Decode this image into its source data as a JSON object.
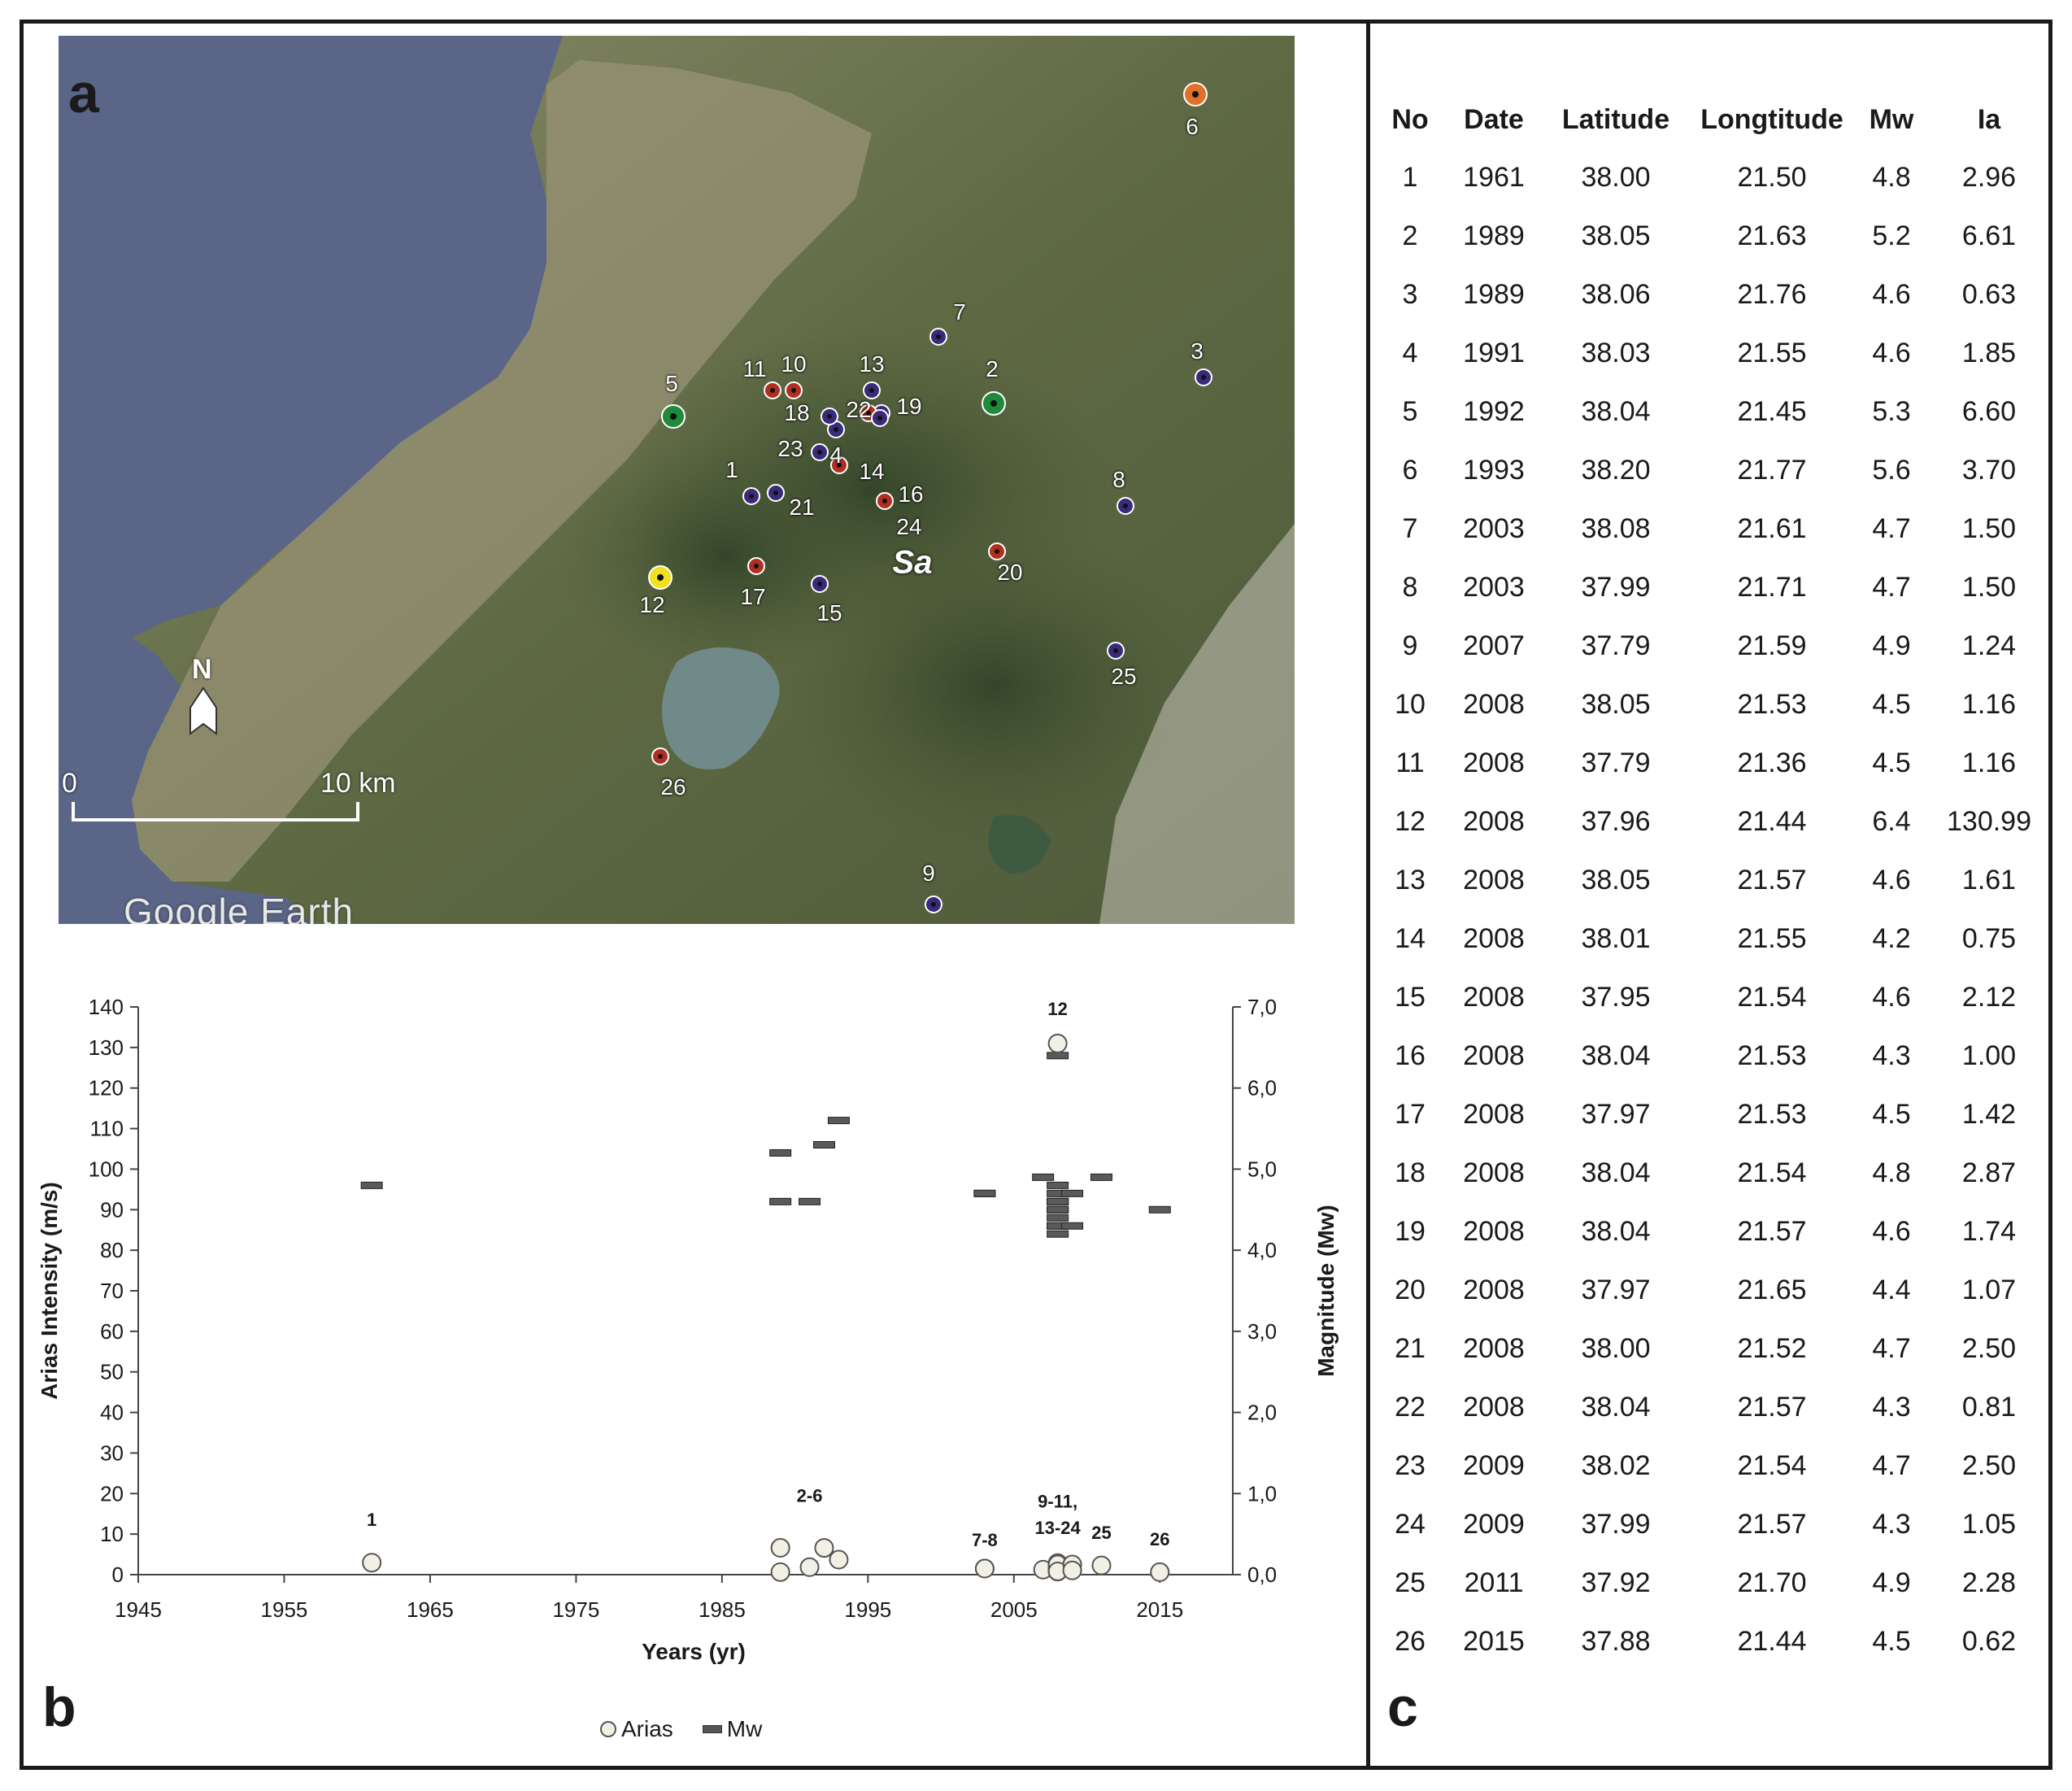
{
  "panel_labels": {
    "a": "a",
    "b": "b",
    "c": "c"
  },
  "map": {
    "study_area_label": "Sa",
    "north_label": "N",
    "scale_start": "0",
    "scale_end": "10 km",
    "watermark": "Google Earth",
    "marker_colors": {
      "purple": "#3a2a7a",
      "red": "#b03020",
      "green": "#1e8a3a",
      "orange": "#e0702a",
      "yellow": "#f0e020"
    },
    "markers": [
      {
        "no": "1",
        "color": "purple"
      },
      {
        "no": "2",
        "color": "green"
      },
      {
        "no": "3",
        "color": "purple"
      },
      {
        "no": "4",
        "color": "purple"
      },
      {
        "no": "5",
        "color": "green"
      },
      {
        "no": "6",
        "color": "orange"
      },
      {
        "no": "7",
        "color": "purple"
      },
      {
        "no": "8",
        "color": "purple"
      },
      {
        "no": "9",
        "color": "purple"
      },
      {
        "no": "10",
        "color": "red"
      },
      {
        "no": "11",
        "color": "red"
      },
      {
        "no": "12",
        "color": "yellow"
      },
      {
        "no": "13",
        "color": "purple"
      },
      {
        "no": "14",
        "color": "red"
      },
      {
        "no": "15",
        "color": "purple"
      },
      {
        "no": "16",
        "color": "red"
      },
      {
        "no": "17",
        "color": "red"
      },
      {
        "no": "18",
        "color": "purple"
      },
      {
        "no": "19",
        "color": "purple"
      },
      {
        "no": "20",
        "color": "red"
      },
      {
        "no": "21",
        "color": "purple"
      },
      {
        "no": "22",
        "color": "red"
      },
      {
        "no": "23",
        "color": "purple"
      },
      {
        "no": "24",
        "color": "purple"
      },
      {
        "no": "25",
        "color": "purple"
      },
      {
        "no": "26",
        "color": "red"
      }
    ]
  },
  "chart_data": {
    "type": "scatter",
    "x_label": "Years (yr)",
    "y_left_label": "Arias Intensity (m/s)",
    "y_right_label": "Magnitude (Mw)",
    "x_range": [
      1945,
      2020
    ],
    "x_ticks": [
      "1945",
      "1955",
      "1965",
      "1975",
      "1985",
      "1995",
      "2005",
      "2015"
    ],
    "y_left_range": [
      0,
      140
    ],
    "y_left_ticks": [
      "0",
      "10",
      "20",
      "30",
      "40",
      "50",
      "60",
      "70",
      "80",
      "90",
      "100",
      "110",
      "120",
      "130",
      "140"
    ],
    "y_right_range": [
      0,
      7
    ],
    "y_right_ticks": [
      "0,0",
      "1,0",
      "2,0",
      "3,0",
      "4,0",
      "5,0",
      "6,0",
      "7,0"
    ],
    "grid": false,
    "legend_position": "bottom",
    "series": [
      {
        "name": "Arias",
        "marker": "circle",
        "axis": "left",
        "x": [
          1961,
          1989,
          1989,
          1991,
          1992,
          1993,
          2003,
          2003,
          2007,
          2008,
          2008,
          2008,
          2008,
          2008,
          2008,
          2008,
          2008,
          2008,
          2008,
          2008,
          2008,
          2008,
          2009,
          2009,
          2011,
          2015
        ],
        "y": [
          2.96,
          6.61,
          0.63,
          1.85,
          6.6,
          3.7,
          1.5,
          1.5,
          1.24,
          1.16,
          1.16,
          130.99,
          1.61,
          0.75,
          2.12,
          1.0,
          1.42,
          2.87,
          1.74,
          1.07,
          2.5,
          0.81,
          2.5,
          1.05,
          2.28,
          0.62
        ]
      },
      {
        "name": "Mw",
        "marker": "dash",
        "axis": "right",
        "x": [
          1961,
          1989,
          1989,
          1991,
          1992,
          1993,
          2003,
          2003,
          2007,
          2008,
          2008,
          2008,
          2008,
          2008,
          2008,
          2008,
          2008,
          2008,
          2008,
          2008,
          2008,
          2008,
          2009,
          2009,
          2011,
          2015
        ],
        "y": [
          4.8,
          5.2,
          4.6,
          4.6,
          5.3,
          5.6,
          4.7,
          4.7,
          4.9,
          4.5,
          4.5,
          6.4,
          4.6,
          4.2,
          4.6,
          4.3,
          4.5,
          4.8,
          4.6,
          4.4,
          4.7,
          4.3,
          4.7,
          4.3,
          4.9,
          4.5
        ]
      }
    ],
    "annotations": [
      {
        "text": "1",
        "x": 1961,
        "y": 12
      },
      {
        "text": "2-6",
        "x": 1991,
        "y": 18
      },
      {
        "text": "7-8",
        "x": 2003,
        "y": 7
      },
      {
        "text": "9-11,",
        "x": 2008,
        "y": 16.5
      },
      {
        "text": "13-24",
        "x": 2008,
        "y": 10
      },
      {
        "text": "25",
        "x": 2011,
        "y": 8.8
      },
      {
        "text": "26",
        "x": 2015,
        "y": 7.2
      },
      {
        "text": "12",
        "x": 2008,
        "y": 138
      }
    ]
  },
  "legend": {
    "arias": "Arias",
    "mw": "Mw"
  },
  "table": {
    "headers": [
      "No",
      "Date",
      "Latitude",
      "Longtitude",
      "Mw",
      "Ia"
    ],
    "rows": [
      [
        "1",
        "1961",
        "38.00",
        "21.50",
        "4.8",
        "2.96"
      ],
      [
        "2",
        "1989",
        "38.05",
        "21.63",
        "5.2",
        "6.61"
      ],
      [
        "3",
        "1989",
        "38.06",
        "21.76",
        "4.6",
        "0.63"
      ],
      [
        "4",
        "1991",
        "38.03",
        "21.55",
        "4.6",
        "1.85"
      ],
      [
        "5",
        "1992",
        "38.04",
        "21.45",
        "5.3",
        "6.60"
      ],
      [
        "6",
        "1993",
        "38.20",
        "21.77",
        "5.6",
        "3.70"
      ],
      [
        "7",
        "2003",
        "38.08",
        "21.61",
        "4.7",
        "1.50"
      ],
      [
        "8",
        "2003",
        "37.99",
        "21.71",
        "4.7",
        "1.50"
      ],
      [
        "9",
        "2007",
        "37.79",
        "21.59",
        "4.9",
        "1.24"
      ],
      [
        "10",
        "2008",
        "38.05",
        "21.53",
        "4.5",
        "1.16"
      ],
      [
        "11",
        "2008",
        "37.79",
        "21.36",
        "4.5",
        "1.16"
      ],
      [
        "12",
        "2008",
        "37.96",
        "21.44",
        "6.4",
        "130.99"
      ],
      [
        "13",
        "2008",
        "38.05",
        "21.57",
        "4.6",
        "1.61"
      ],
      [
        "14",
        "2008",
        "38.01",
        "21.55",
        "4.2",
        "0.75"
      ],
      [
        "15",
        "2008",
        "37.95",
        "21.54",
        "4.6",
        "2.12"
      ],
      [
        "16",
        "2008",
        "38.04",
        "21.53",
        "4.3",
        "1.00"
      ],
      [
        "17",
        "2008",
        "37.97",
        "21.53",
        "4.5",
        "1.42"
      ],
      [
        "18",
        "2008",
        "38.04",
        "21.54",
        "4.8",
        "2.87"
      ],
      [
        "19",
        "2008",
        "38.04",
        "21.57",
        "4.6",
        "1.74"
      ],
      [
        "20",
        "2008",
        "37.97",
        "21.65",
        "4.4",
        "1.07"
      ],
      [
        "21",
        "2008",
        "38.00",
        "21.52",
        "4.7",
        "2.50"
      ],
      [
        "22",
        "2008",
        "38.04",
        "21.57",
        "4.3",
        "0.81"
      ],
      [
        "23",
        "2009",
        "38.02",
        "21.54",
        "4.7",
        "2.50"
      ],
      [
        "24",
        "2009",
        "37.99",
        "21.57",
        "4.3",
        "1.05"
      ],
      [
        "25",
        "2011",
        "37.92",
        "21.70",
        "4.9",
        "2.28"
      ],
      [
        "26",
        "2015",
        "37.88",
        "21.44",
        "4.5",
        "0.62"
      ]
    ]
  }
}
